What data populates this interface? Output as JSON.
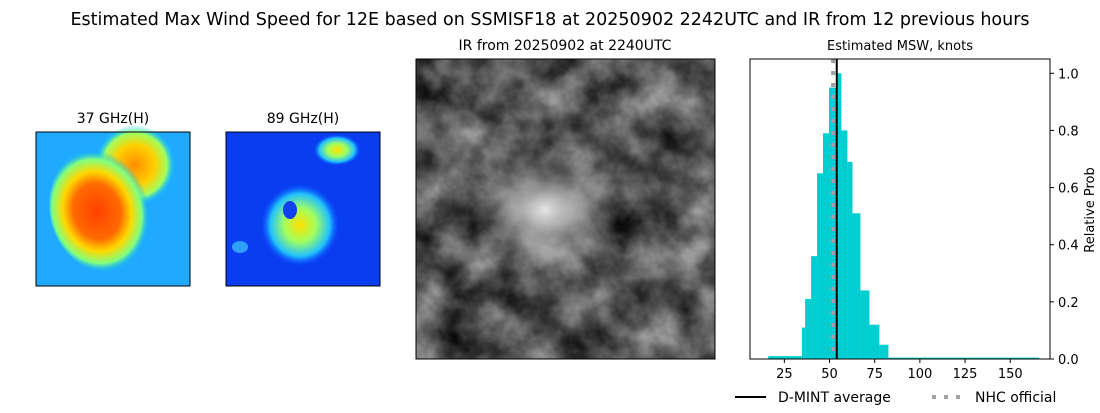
{
  "title": "Estimated Max Wind Speed for 12E based on SSMISF18 at 20250902 2242UTC and IR from 12 previous hours",
  "panels": {
    "mw37_title": "37 GHz(H)",
    "mw89_title": "89 GHz(H)",
    "ir_title": "IR from 20250902 at 2240UTC"
  },
  "chart_data": {
    "type": "bar",
    "title": "Estimated MSW, knots",
    "xlabel": "",
    "ylabel": "Relative Prob",
    "xlim": [
      6,
      172
    ],
    "ylim": [
      0,
      1.05
    ],
    "x_ticks": [
      25,
      50,
      75,
      100,
      125,
      150
    ],
    "y_ticks": [
      "0.0",
      "0.2",
      "0.4",
      "0.6",
      "0.8",
      "1.0"
    ],
    "y_axis_side": "right",
    "grid": false,
    "bar_color": "#00ced1",
    "bins": [
      {
        "from": 16.1,
        "to": 34.7,
        "value": 0.01
      },
      {
        "from": 34.7,
        "to": 36.5,
        "value": 0.11
      },
      {
        "from": 36.5,
        "to": 39.8,
        "value": 0.21
      },
      {
        "from": 39.8,
        "to": 43.1,
        "value": 0.36
      },
      {
        "from": 43.1,
        "to": 46.4,
        "value": 0.65
      },
      {
        "from": 46.4,
        "to": 49.7,
        "value": 0.79
      },
      {
        "from": 49.7,
        "to": 53.9,
        "value": 0.95
      },
      {
        "from": 53.9,
        "to": 56.6,
        "value": 1.0
      },
      {
        "from": 56.6,
        "to": 59.9,
        "value": 0.8
      },
      {
        "from": 59.9,
        "to": 62.7,
        "value": 0.69
      },
      {
        "from": 62.7,
        "to": 67.1,
        "value": 0.51
      },
      {
        "from": 67.1,
        "to": 72.1,
        "value": 0.24
      },
      {
        "from": 72.1,
        "to": 77.6,
        "value": 0.12
      },
      {
        "from": 77.6,
        "to": 82.6,
        "value": 0.05
      },
      {
        "from": 82.6,
        "to": 166,
        "value": 0.005
      }
    ],
    "lines": [
      {
        "name": "D-MINT average",
        "x": 54,
        "color": "#000000",
        "style": "solid"
      },
      {
        "name": "NHC official",
        "x": 52,
        "color": "#a0a0a0",
        "style": "dotted"
      }
    ],
    "legend_placement": "bottom"
  }
}
